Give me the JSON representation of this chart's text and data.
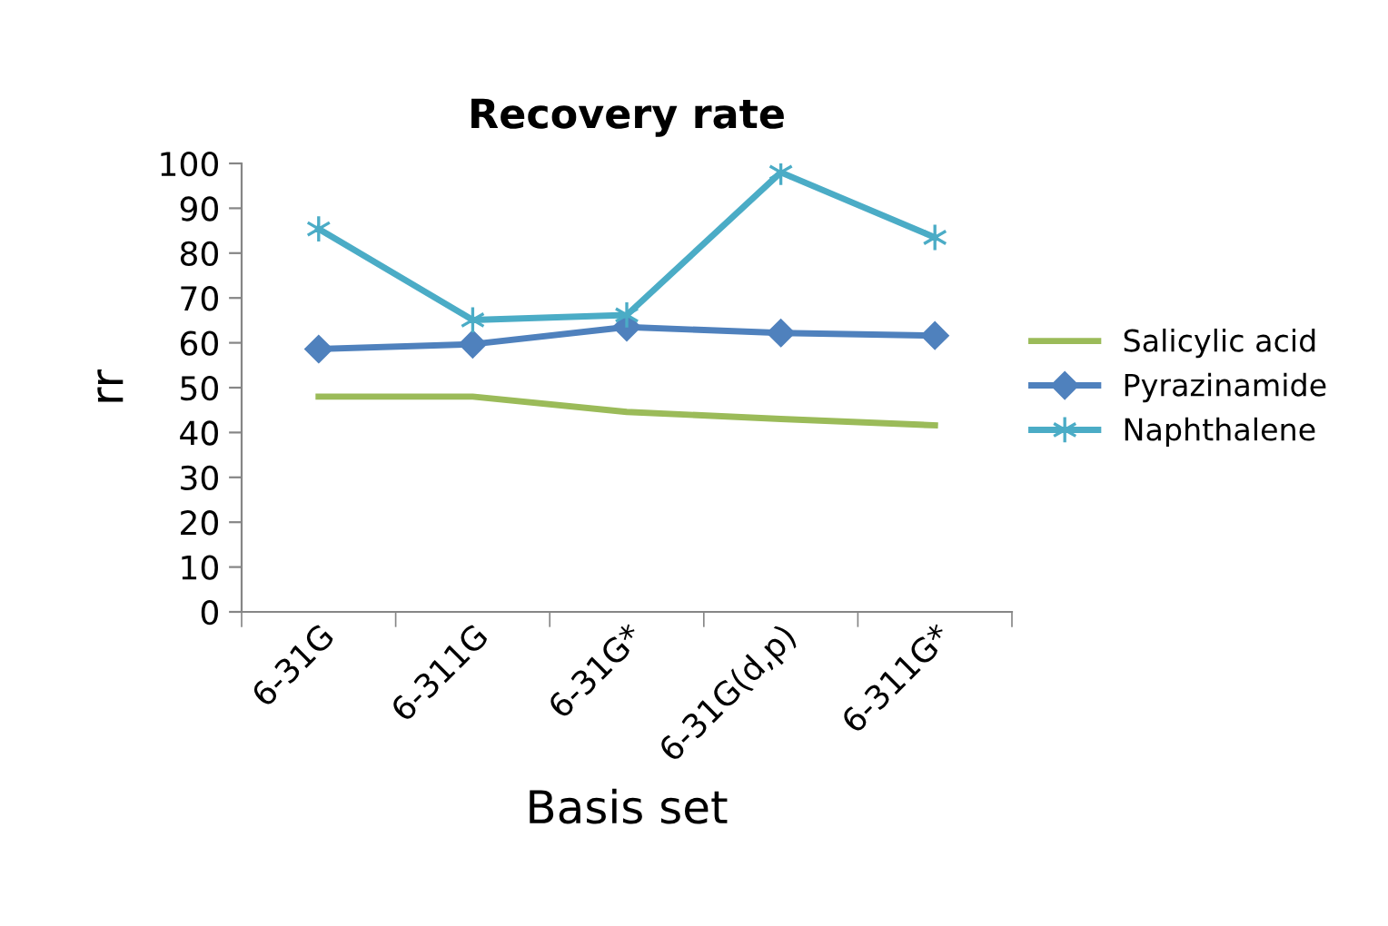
{
  "chart_data": {
    "type": "line",
    "title": "Recovery rate",
    "xlabel": "Basis set",
    "ylabel": "rr",
    "categories": [
      "6-31G",
      "6-311G",
      "6-31G*",
      "6-31G(d,p)",
      "6-311G*"
    ],
    "series": [
      {
        "name": "Salicylic acid",
        "color": "#9bbb59",
        "marker": "none",
        "values": [
          48,
          48,
          44.6,
          43,
          41.6
        ]
      },
      {
        "name": "Pyrazinamide",
        "color": "#4f81bd",
        "marker": "diamond",
        "values": [
          58.6,
          59.7,
          63.5,
          62.2,
          61.6
        ]
      },
      {
        "name": "Naphthalene",
        "color": "#4bacc6",
        "marker": "cross",
        "values": [
          85.4,
          65.1,
          66.2,
          98,
          83.5
        ]
      }
    ],
    "ylim": [
      0,
      100
    ],
    "yticks": [
      0,
      10,
      20,
      30,
      40,
      50,
      60,
      70,
      80,
      90,
      100
    ],
    "grid": false,
    "legend": "right"
  }
}
